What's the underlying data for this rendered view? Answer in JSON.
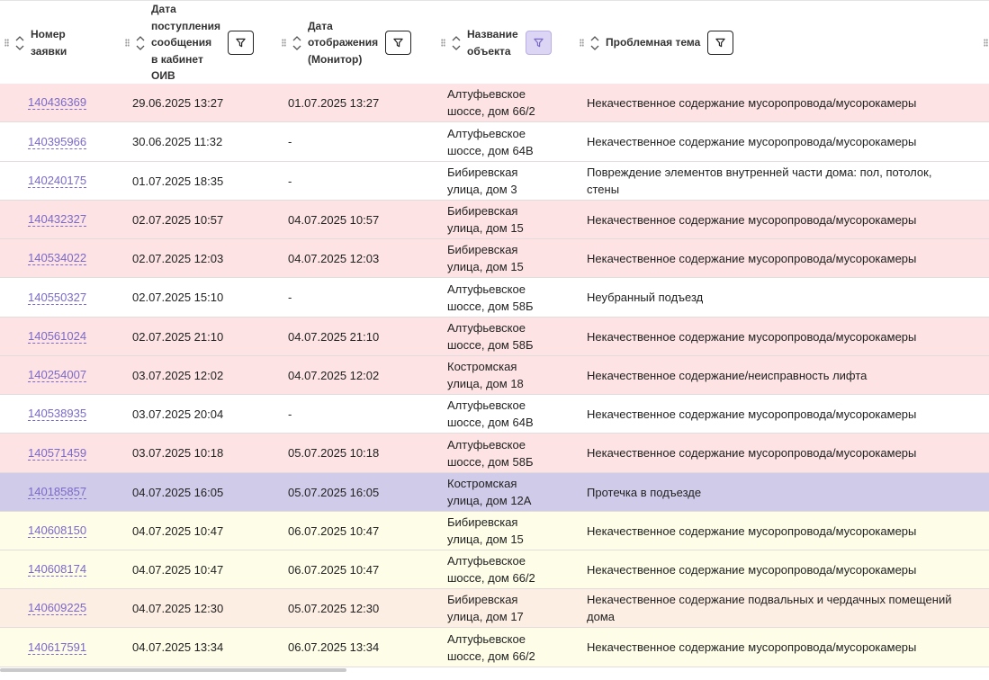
{
  "columns": {
    "number": "Номер\nзаявки",
    "received": "Дата\nпоступления\nсообщения\nв кабинет\nОИВ",
    "display": "Дата\nотображения\n(Монитор)",
    "object": "Название\nобъекта",
    "topic": "Проблемная тема"
  },
  "rows": [
    {
      "id": "140436369",
      "received": "29.06.2025 13:27",
      "display": "01.07.2025 13:27",
      "object": "Алтуфьевское\nшоссе, дом 66/2",
      "topic": "Некачественное содержание мусоропровода/мусорокамеры",
      "tone": "pink"
    },
    {
      "id": "140395966",
      "received": "30.06.2025 11:32",
      "display": "-",
      "object": "Алтуфьевское\nшоссе, дом 64В",
      "topic": "Некачественное содержание мусоропровода/мусорокамеры",
      "tone": "white"
    },
    {
      "id": "140240175",
      "received": "01.07.2025 18:35",
      "display": "-",
      "object": "Бибиревская\nулица, дом 3",
      "topic": "Повреждение элементов внутренней части дома: пол, потолок,\nстены",
      "tone": "white"
    },
    {
      "id": "140432327",
      "received": "02.07.2025 10:57",
      "display": "04.07.2025 10:57",
      "object": "Бибиревская\nулица, дом 15",
      "topic": "Некачественное содержание мусоропровода/мусорокамеры",
      "tone": "pink"
    },
    {
      "id": "140534022",
      "received": "02.07.2025 12:03",
      "display": "04.07.2025 12:03",
      "object": "Бибиревская\nулица, дом 15",
      "topic": "Некачественное содержание мусоропровода/мусорокамеры",
      "tone": "pink"
    },
    {
      "id": "140550327",
      "received": "02.07.2025 15:10",
      "display": "-",
      "object": "Алтуфьевское\nшоссе, дом 58Б",
      "topic": "Неубранный подъезд",
      "tone": "white"
    },
    {
      "id": "140561024",
      "received": "02.07.2025 21:10",
      "display": "04.07.2025 21:10",
      "object": "Алтуфьевское\nшоссе, дом 58Б",
      "topic": "Некачественное содержание мусоропровода/мусорокамеры",
      "tone": "pink"
    },
    {
      "id": "140254007",
      "received": "03.07.2025 12:02",
      "display": "04.07.2025 12:02",
      "object": "Костромская\nулица, дом 18",
      "topic": "Некачественное содержание/неисправность лифта",
      "tone": "pink"
    },
    {
      "id": "140538935",
      "received": "03.07.2025 20:04",
      "display": "-",
      "object": "Алтуфьевское\nшоссе, дом 64В",
      "topic": "Некачественное содержание мусоропровода/мусорокамеры",
      "tone": "white"
    },
    {
      "id": "140571459",
      "received": "03.07.2025 10:18",
      "display": "05.07.2025 10:18",
      "object": "Алтуфьевское\nшоссе, дом 58Б",
      "topic": "Некачественное содержание мусоропровода/мусорокамеры",
      "tone": "pink"
    },
    {
      "id": "140185857",
      "received": "04.07.2025 16:05",
      "display": "05.07.2025 16:05",
      "object": "Костромская\nулица, дом 12А",
      "topic": "Протечка в подъезде",
      "tone": "purple"
    },
    {
      "id": "140608150",
      "received": "04.07.2025 10:47",
      "display": "06.07.2025 10:47",
      "object": "Бибиревская\nулица, дом 15",
      "topic": "Некачественное содержание мусоропровода/мусорокамеры",
      "tone": "yellow"
    },
    {
      "id": "140608174",
      "received": "04.07.2025 10:47",
      "display": "06.07.2025 10:47",
      "object": "Алтуфьевское\nшоссе, дом 66/2",
      "topic": "Некачественное содержание мусоропровода/мусорокамеры",
      "tone": "yellow"
    },
    {
      "id": "140609225",
      "received": "04.07.2025 12:30",
      "display": "05.07.2025 12:30",
      "object": "Бибиревская\nулица, дом 17",
      "topic": "Некачественное содержание подвальных и чердачных помещений\nдома",
      "tone": "peach"
    },
    {
      "id": "140617591",
      "received": "04.07.2025 13:34",
      "display": "06.07.2025 13:34",
      "object": "Алтуфьевское\nшоссе, дом 66/2",
      "topic": "Некачественное содержание мусоропровода/мусорокамеры",
      "tone": "yellow"
    }
  ],
  "colors": {
    "pink": "#fde3e3",
    "white": "#ffffff",
    "purple": "#d1cbea",
    "yellow": "#fefde8",
    "peach": "#fdeee3",
    "link": "#7b69c9",
    "filter_active": "#dcd5f3"
  },
  "icons": {
    "sort": "sort-arrows-icon",
    "filter": "funnel-icon",
    "grip": "drag-handle-icon"
  },
  "active_filter": "object"
}
